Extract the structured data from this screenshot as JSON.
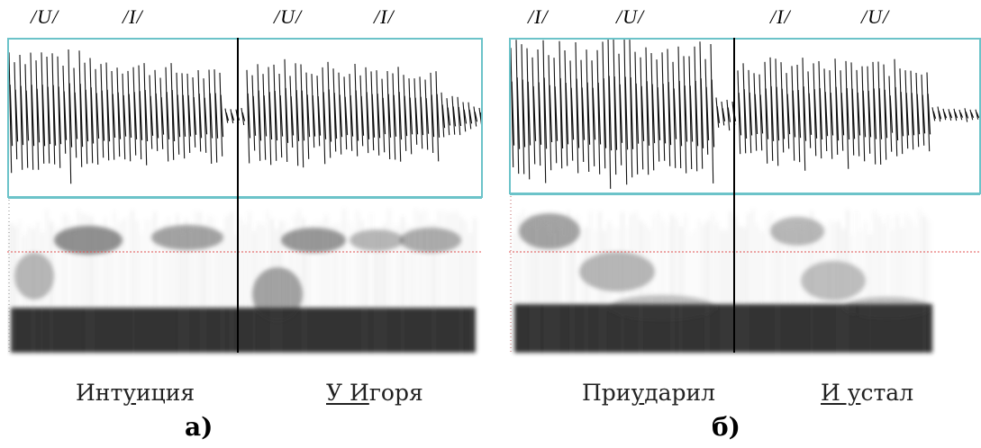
{
  "panel_a": {
    "phon_1": "/U/",
    "phon_2": "/I/",
    "phon_3": "/U/",
    "phon_4": "/I/",
    "word_1": {
      "pre": "Инт",
      "stress": "у",
      "post": "иция"
    },
    "word_2": {
      "pre": "",
      "stress": "У И",
      "post": "горя"
    },
    "caption": "а)"
  },
  "panel_b": {
    "phon_1": "/I/",
    "phon_2": "/U/",
    "phon_3": "/I/",
    "phon_4": "/U/",
    "word_1": {
      "pre": "При",
      "stress": "у",
      "post": "дарил"
    },
    "word_2": {
      "pre": "",
      "stress": "И у",
      "post": "стал"
    },
    "caption": "б)"
  },
  "colors": {
    "frame": "#6cc3c9",
    "waveform": "#111111",
    "spectrogram_dark": "#000000",
    "reference_line": "#e05050"
  }
}
